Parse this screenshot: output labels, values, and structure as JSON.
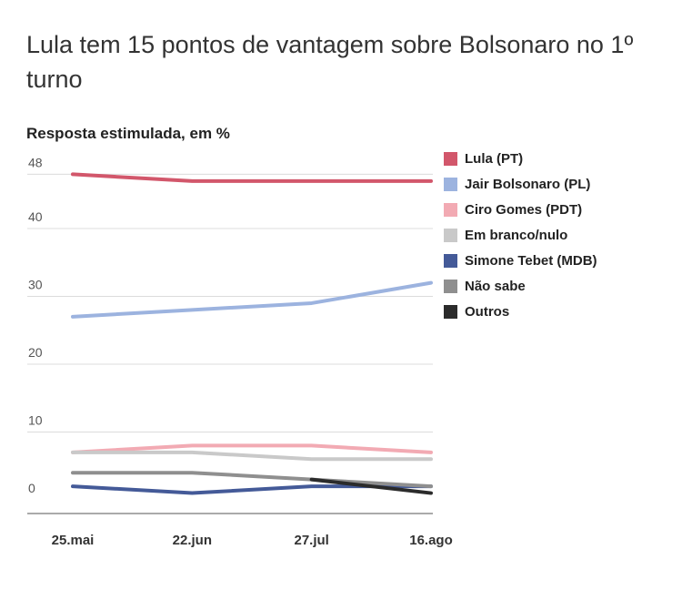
{
  "title": "Lula tem 15 pontos de vantagem sobre Bolsonaro no 1º turno",
  "chart_data": {
    "type": "line",
    "title": "Lula tem 15 pontos de vantagem sobre Bolsonaro no 1º turno",
    "subtitle": "Resposta estimulada, em %",
    "x": [
      "25.mai",
      "22.jun",
      "27.jul",
      "16.ago"
    ],
    "y_ticks": [
      "0",
      "10",
      "20",
      "30",
      "40",
      "48"
    ],
    "ylim": [
      0,
      48
    ],
    "grid": true,
    "legend_position": "right",
    "series": [
      {
        "name": "Lula (PT)",
        "color": "#d2576b",
        "values": [
          48,
          47,
          47,
          47
        ]
      },
      {
        "name": "Jair Bolsonaro (PL)",
        "color": "#9cb3df",
        "values": [
          27,
          28,
          29,
          32
        ]
      },
      {
        "name": "Ciro Gomes (PDT)",
        "color": "#f2aab3",
        "values": [
          7,
          8,
          8,
          7
        ]
      },
      {
        "name": "Em branco/nulo",
        "color": "#c9c9c9",
        "values": [
          7,
          7,
          6,
          6
        ]
      },
      {
        "name": "Simone Tebet (MDB)",
        "color": "#445a98",
        "values": [
          2,
          1,
          2,
          2
        ]
      },
      {
        "name": "Não sabe",
        "color": "#8f8f8f",
        "values": [
          4,
          4,
          3,
          2
        ]
      },
      {
        "name": "Outros",
        "color": "#2b2b2b",
        "values": [
          null,
          null,
          3,
          1
        ]
      }
    ]
  }
}
